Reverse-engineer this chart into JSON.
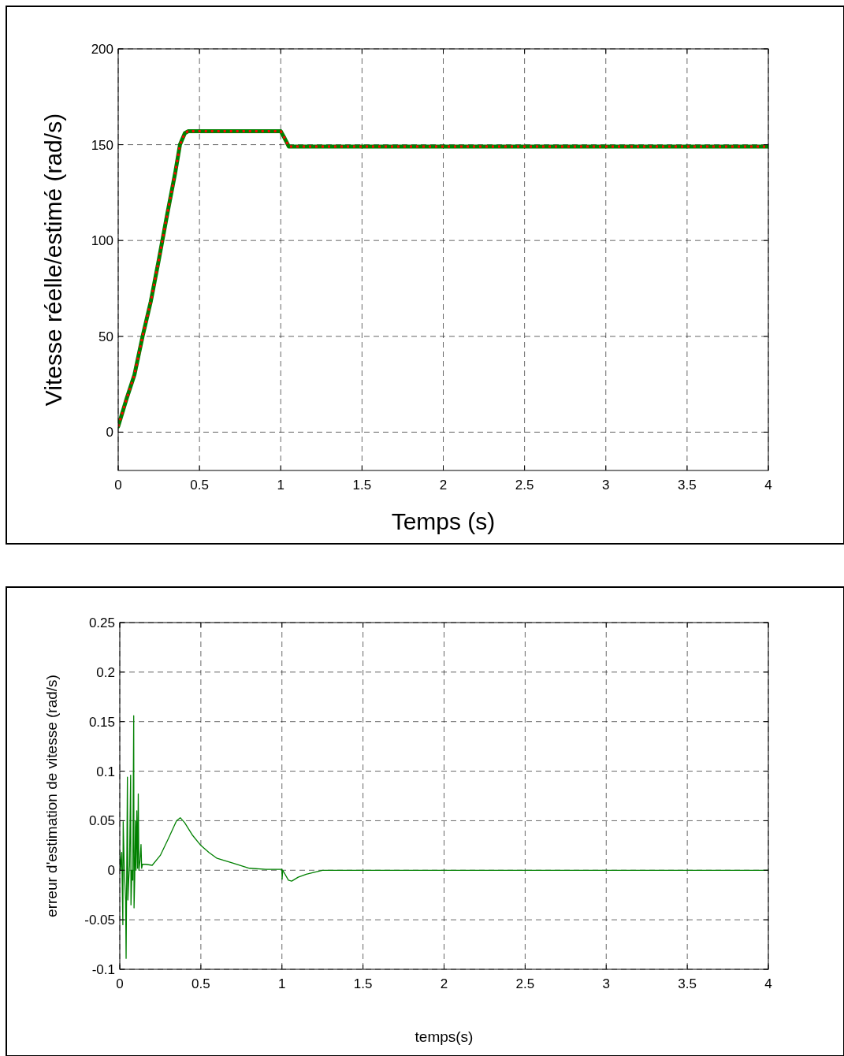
{
  "chart_data": [
    {
      "type": "line",
      "xlabel": "Temps (s)",
      "ylabel": "Vitesse réelle/estimé (rad/s)",
      "xlim": [
        0,
        4
      ],
      "ylim": [
        -20,
        200
      ],
      "xticks": [
        0,
        0.5,
        1,
        1.5,
        2,
        2.5,
        3,
        3.5,
        4
      ],
      "yticks": [
        0,
        50,
        100,
        150,
        200
      ],
      "grid": true,
      "series": [
        {
          "color": "#008000",
          "line_style": "solid",
          "x": [
            0,
            0.05,
            0.1,
            0.15,
            0.2,
            0.25,
            0.3,
            0.35,
            0.38,
            0.41,
            0.43,
            1.0,
            1.02,
            1.05,
            4
          ],
          "values": [
            3,
            17,
            30,
            50,
            68,
            90,
            113,
            135,
            150,
            156,
            157,
            157,
            154,
            149,
            149
          ]
        },
        {
          "color": "#ff0000",
          "line_style": "dotted",
          "x": [
            0,
            0.05,
            0.1,
            0.15,
            0.2,
            0.25,
            0.3,
            0.35,
            0.38,
            0.41,
            0.43,
            1.0,
            1.02,
            1.05,
            4
          ],
          "values": [
            3,
            17,
            30,
            50,
            68,
            90,
            113,
            135,
            150,
            156,
            157,
            157,
            154,
            149,
            149
          ]
        }
      ]
    },
    {
      "type": "line",
      "xlabel": "temps(s)",
      "ylabel": "erreur d'estimation de vitesse (rad/s)",
      "xlim": [
        0,
        4
      ],
      "ylim": [
        -0.1,
        0.25
      ],
      "xticks": [
        0,
        0.5,
        1,
        1.5,
        2,
        2.5,
        3,
        3.5,
        4
      ],
      "yticks": [
        -0.1,
        -0.05,
        0,
        0.05,
        0.1,
        0.15,
        0.2,
        0.25
      ],
      "grid": true,
      "series": [
        {
          "color": "#008000",
          "line_style": "solid",
          "x": [
            0,
            0.005,
            0.012,
            0.019,
            0.021,
            0.028,
            0.036,
            0.039,
            0.043,
            0.047,
            0.05,
            0.055,
            0.06,
            0.067,
            0.069,
            0.075,
            0.08,
            0.086,
            0.088,
            0.092,
            0.097,
            0.1,
            0.105,
            0.11,
            0.114,
            0.118,
            0.125,
            0.131,
            0.135,
            0.14,
            0.16,
            0.2,
            0.25,
            0.3,
            0.35,
            0.373,
            0.4,
            0.45,
            0.5,
            0.55,
            0.6,
            0.7,
            0.8,
            0.9,
            1.0,
            1.001,
            1.005,
            1.04,
            1.06,
            1.1,
            1.15,
            1.2,
            1.25,
            1.3,
            4
          ],
          "values": [
            0.02,
            0,
            0.018,
            -0.055,
            0.049,
            0,
            -0.03,
            -0.089,
            0,
            0.094,
            -0.03,
            -0.01,
            0.005,
            0.096,
            -0.035,
            0,
            -0.01,
            0.156,
            -0.038,
            -0.01,
            0.05,
            0,
            0.06,
            0.002,
            0.077,
            0,
            0.01,
            0.026,
            0.002,
            0.006,
            0.006,
            0.005,
            0.015,
            0.032,
            0.05,
            0.053,
            0.048,
            0.035,
            0.025,
            0.018,
            0.012,
            0.007,
            0.002,
            0.001,
            0.001,
            -0.009,
            0,
            -0.01,
            -0.011,
            -0.007,
            -0.004,
            -0.002,
            0,
            0,
            0
          ]
        }
      ]
    }
  ]
}
